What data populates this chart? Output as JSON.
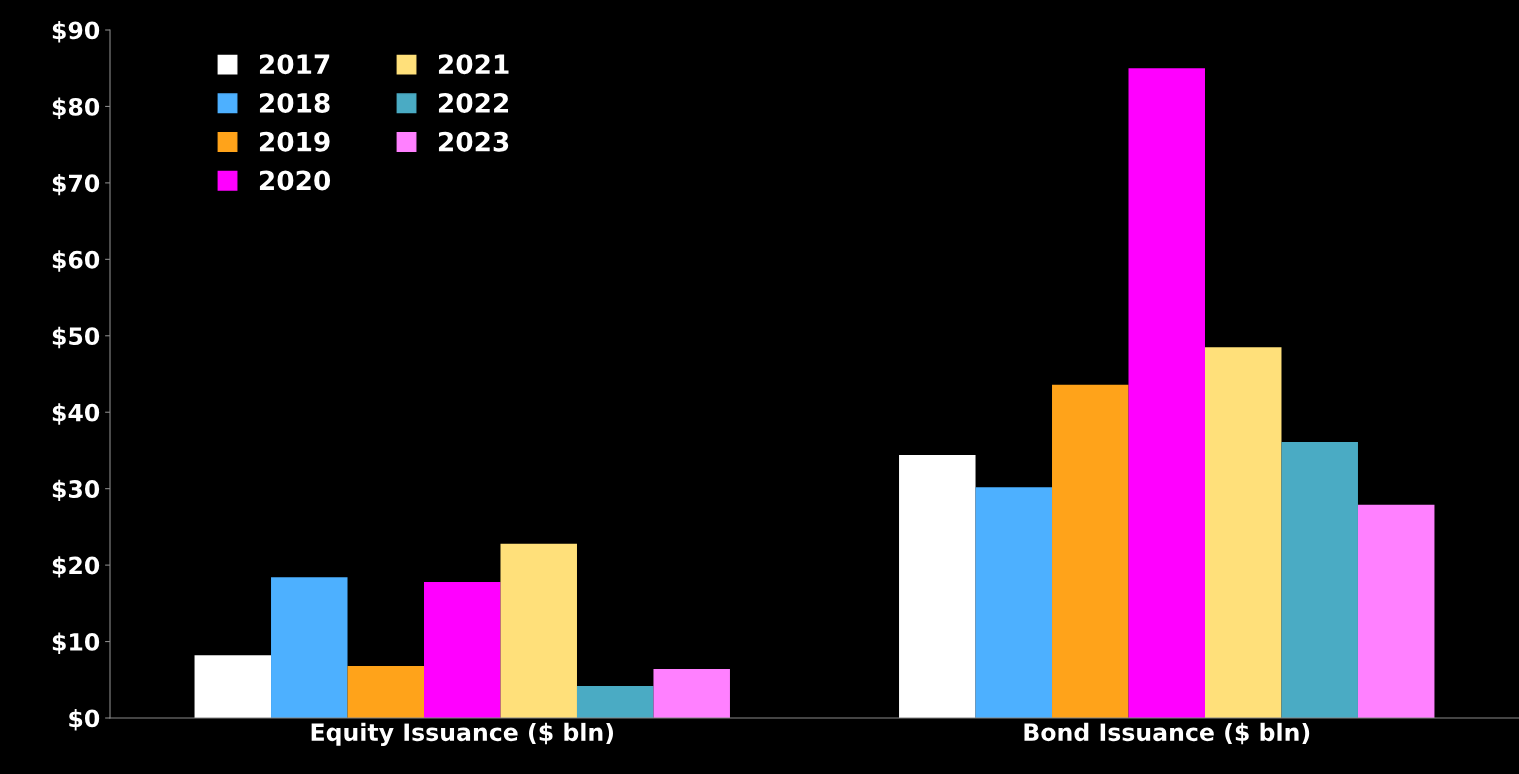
{
  "chart_data": {
    "type": "bar",
    "categories": [
      "Equity Issuance ($ bln)",
      "Bond Issuance ($ bln)"
    ],
    "series": [
      {
        "name": "2017",
        "color": "#ffffff",
        "values": [
          8.2,
          34.4
        ]
      },
      {
        "name": "2018",
        "color": "#4db0ff",
        "values": [
          18.4,
          30.2
        ]
      },
      {
        "name": "2019",
        "color": "#ffa31a",
        "values": [
          6.8,
          43.6
        ]
      },
      {
        "name": "2020",
        "color": "#ff00ff",
        "values": [
          17.8,
          85.0
        ]
      },
      {
        "name": "2021",
        "color": "#ffe07a",
        "values": [
          22.8,
          48.5
        ]
      },
      {
        "name": "2022",
        "color": "#4aabc4",
        "values": [
          4.2,
          36.1
        ]
      },
      {
        "name": "2023",
        "color": "#ff80ff",
        "values": [
          6.4,
          27.9
        ]
      }
    ],
    "ylim": [
      0,
      90
    ],
    "yticks": [
      {
        "value": 0,
        "label": "$0"
      },
      {
        "value": 10,
        "label": "$10"
      },
      {
        "value": 20,
        "label": "$20"
      },
      {
        "value": 30,
        "label": "$30"
      },
      {
        "value": 40,
        "label": "$40"
      },
      {
        "value": 50,
        "label": "$50"
      },
      {
        "value": 60,
        "label": "$60"
      },
      {
        "value": 70,
        "label": "$70"
      },
      {
        "value": 80,
        "label": "$80"
      },
      {
        "value": 90,
        "label": "$90"
      }
    ],
    "grid": false,
    "legend": "top left"
  }
}
